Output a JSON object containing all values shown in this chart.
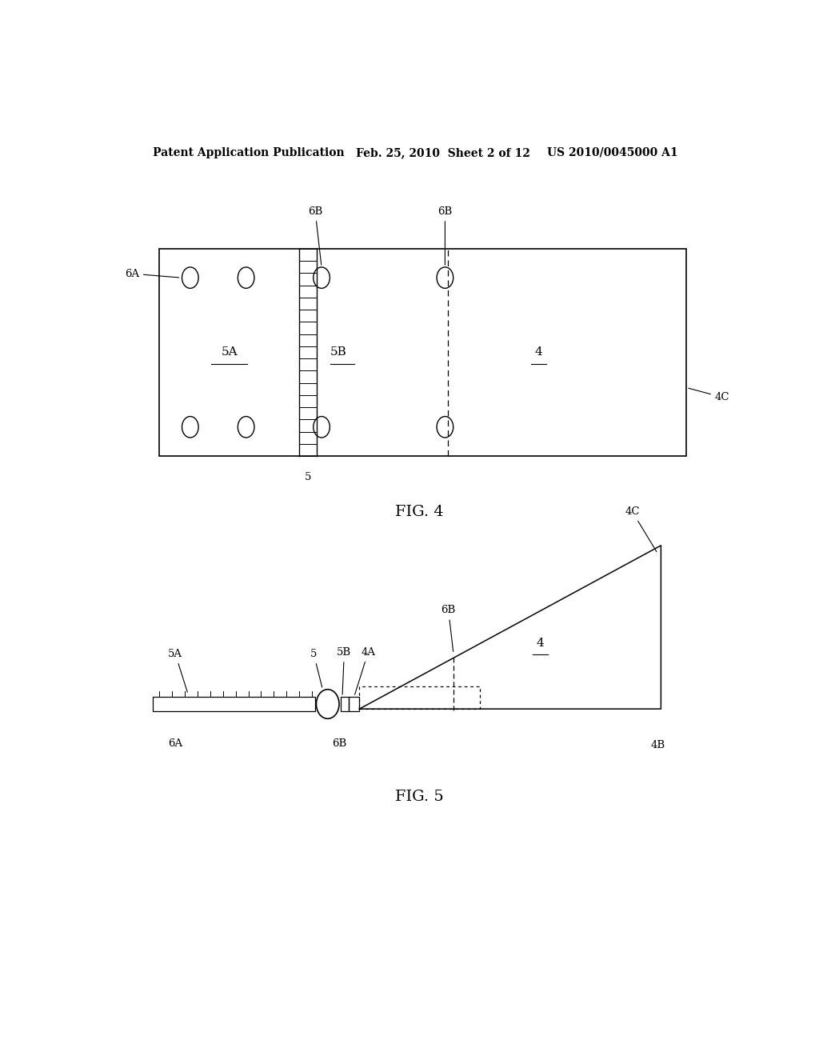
{
  "bg_color": "#ffffff",
  "line_color": "#000000",
  "header_left": "Patent Application Publication",
  "header_mid": "Feb. 25, 2010  Sheet 2 of 12",
  "header_right": "US 2010/0045000 A1",
  "fig4_label": "FIG. 4",
  "fig5_label": "FIG. 5"
}
